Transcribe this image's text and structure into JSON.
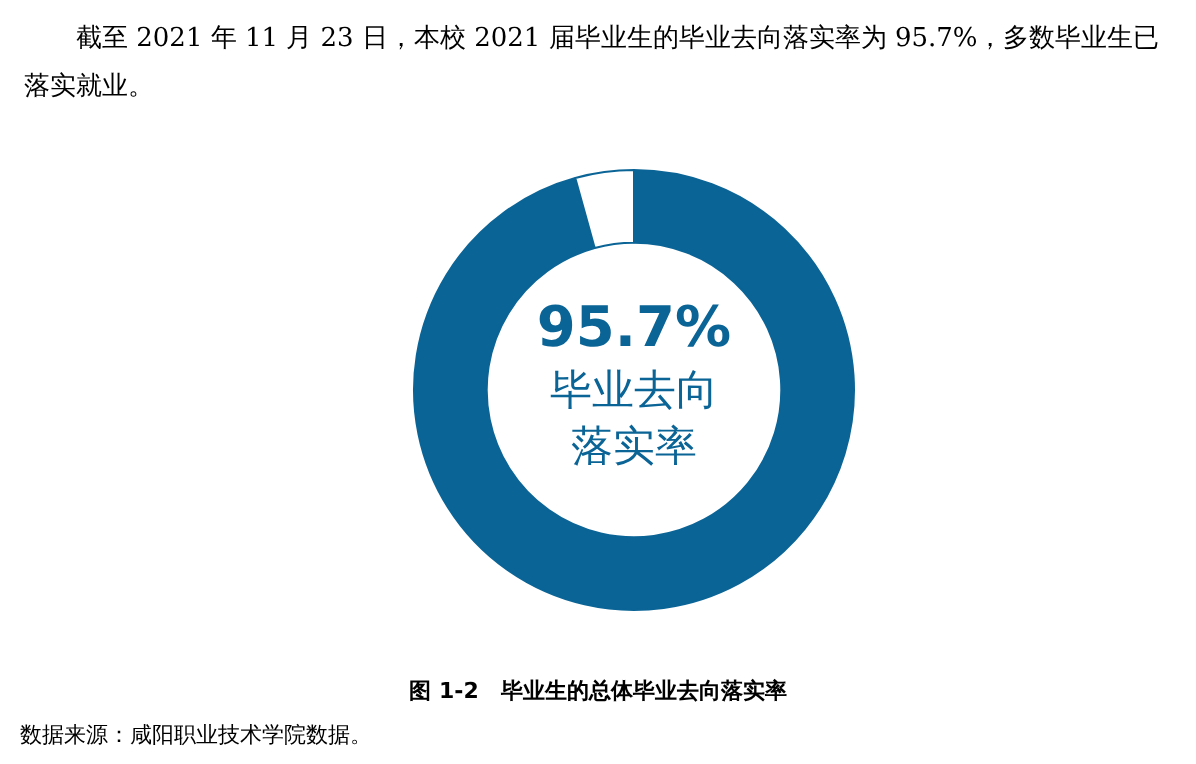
{
  "chart_data": {
    "type": "donut",
    "title": "图 1-2　毕业生的总体毕业去向落实率",
    "subtitle": "截至 2021 年 11 月 23 日，本校 2021 届毕业生的毕业去向落实率为 95.7%，多数毕业生已落实就业。",
    "categories": [
      null,
      null
    ],
    "values": [
      95.7,
      4.3
    ],
    "colors": [
      "#0b6496",
      "#ffffff"
    ],
    "value_labels": [
      "95.7%",
      null
    ],
    "annotations": [
      "毕业去向落实率",
      "数据来源：咸阳职业技术学院数据。"
    ],
    "legend": false
  }
}
